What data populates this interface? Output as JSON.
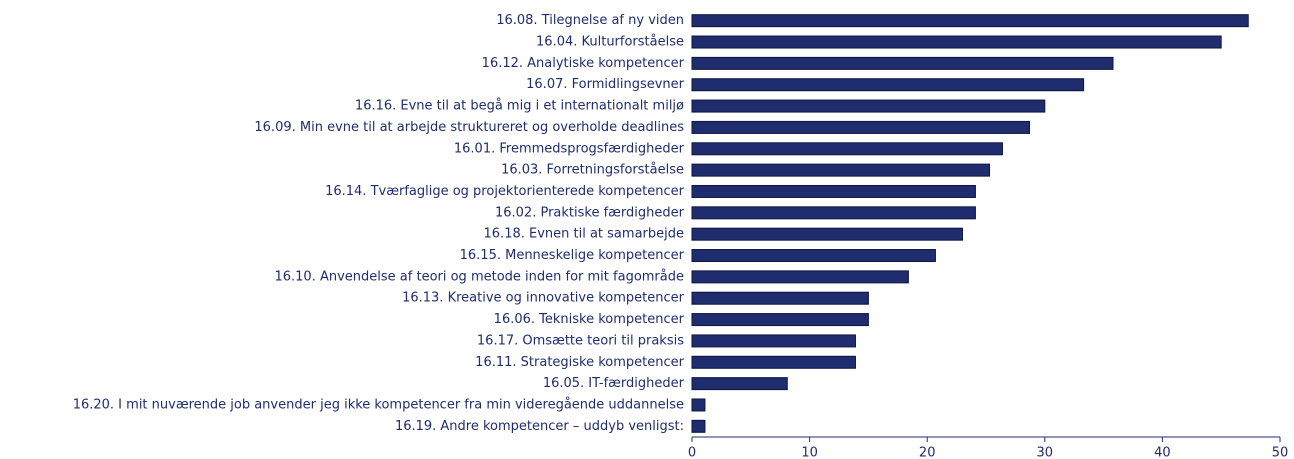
{
  "chart_data": {
    "type": "bar",
    "orientation": "horizontal",
    "categories": [
      "16.08. Tilegnelse af ny viden",
      "16.04. Kulturforståelse",
      "16.12. Analytiske kompetencer",
      "16.07. Formidlingsevner",
      "16.16. Evne til at begå mig i et internationalt miljø",
      "16.09. Min evne til at arbejde struktureret og overholde deadlines",
      "16.01. Fremmedsprogsfærdigheder",
      "16.03. Forretningsforståelse",
      "16.14. Tværfaglige  og  projektorienterede kompetencer",
      "16.02. Praktiske færdigheder",
      "16.18. Evnen til at samarbejde",
      "16.15. Menneskelige  kompetencer",
      "16.10. Anvendelse af teori og metode inden for mit fagområde",
      "16.13. Kreative og innovative kompetencer",
      "16.06. Tekniske kompetencer",
      "16.17. Omsætte teori til praksis",
      "16.11. Strategiske kompetencer",
      "16.05. IT-færdigheder",
      "16.20. I mit nuværende job anvender jeg ikke kompetencer fra min videregående uddannelse",
      "16.19. Andre kompetencer – uddyb venligst:"
    ],
    "values": [
      47.3,
      45.0,
      35.8,
      33.3,
      30.0,
      28.7,
      26.4,
      25.3,
      24.1,
      24.1,
      23.0,
      20.7,
      18.4,
      15.0,
      15.0,
      13.9,
      13.9,
      8.1,
      1.1,
      1.1
    ],
    "color": "#1f2d6e",
    "xlim": [
      0,
      50
    ],
    "xticks": [
      0,
      10,
      20,
      30,
      40,
      50
    ]
  }
}
